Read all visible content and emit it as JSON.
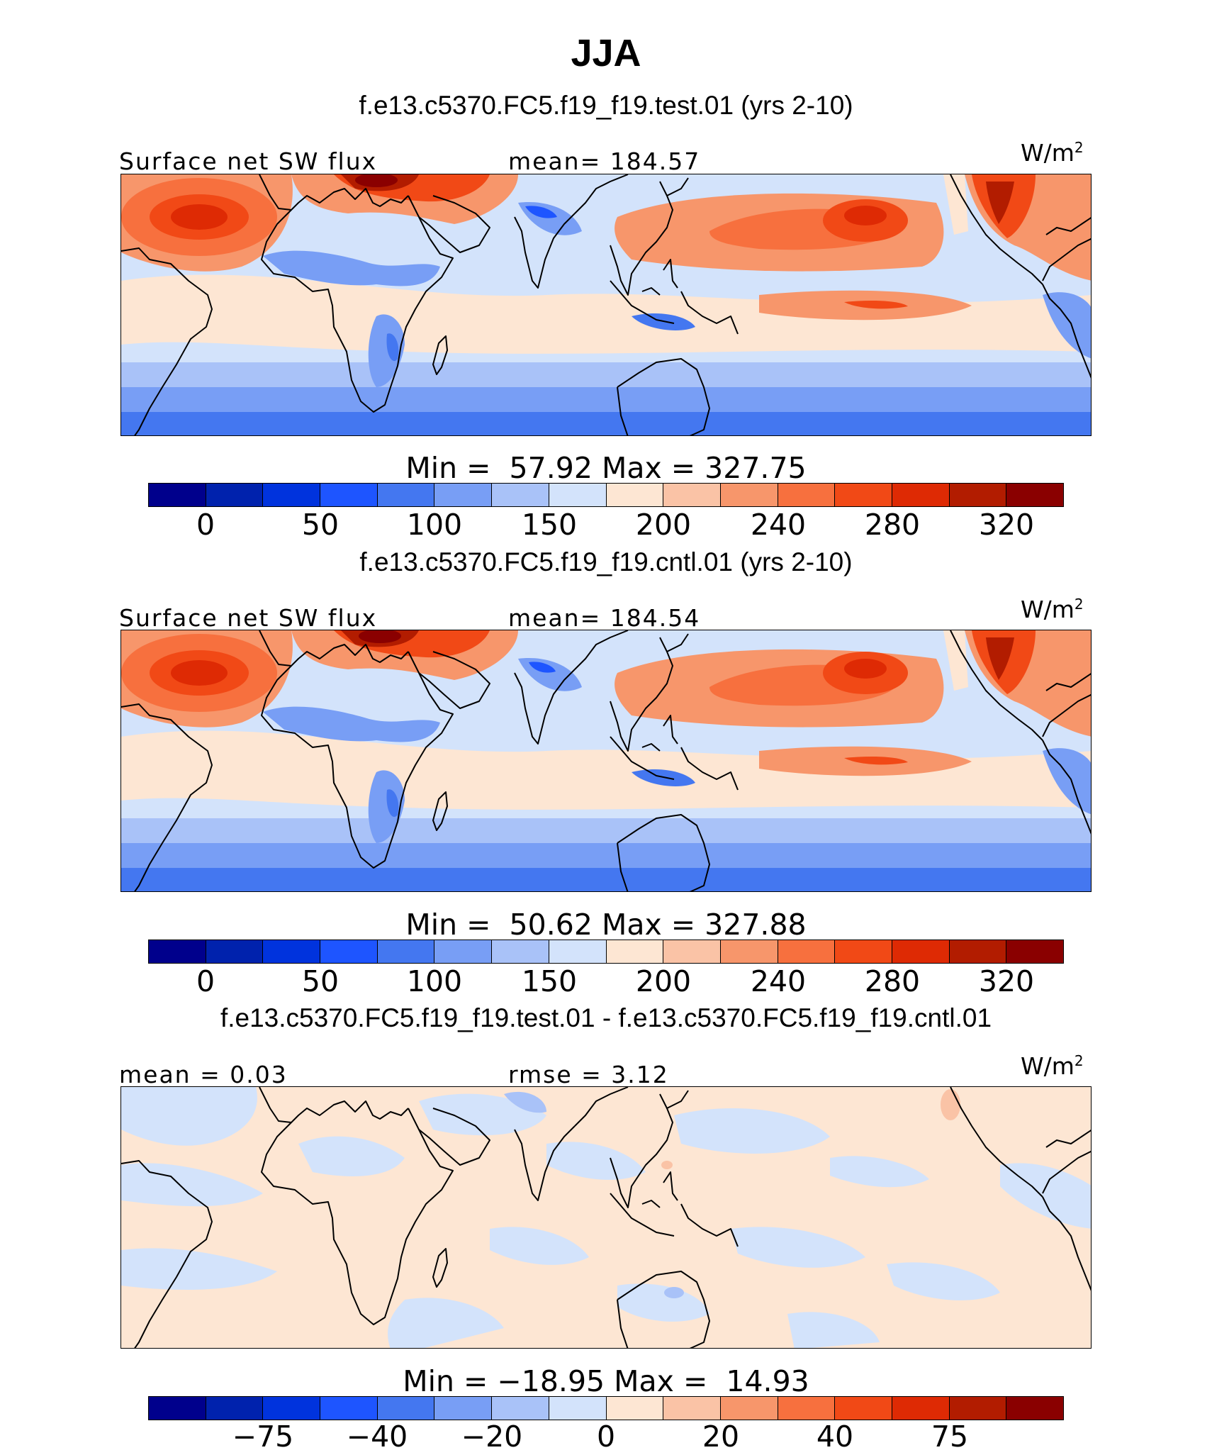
{
  "title": "JJA",
  "colors": [
    "#00008c",
    "#0022ad",
    "#0033dd",
    "#1e55ff",
    "#4477f0",
    "#789ef5",
    "#a9c2f8",
    "#d3e3fb",
    "#fde6d3",
    "#fac3a6",
    "#f7966b",
    "#f7703e",
    "#f14916",
    "#de2a04",
    "#b21c00",
    "#8a0000"
  ],
  "panels": [
    {
      "case": "f.e13.c5370.FC5.f19_f19.test.01 (yrs 2-10)",
      "left_label": "Surface net SW flux",
      "center_label": "mean= 184.57",
      "unit": "W/m",
      "unit_sup": "2",
      "minmax": "Min =  57.92 Max = 327.75",
      "ticks": [
        "0",
        "50",
        "100",
        "150",
        "200",
        "240",
        "280",
        "320"
      ]
    },
    {
      "case": "f.e13.c5370.FC5.f19_f19.cntl.01 (yrs 2-10)",
      "left_label": "Surface net SW flux",
      "center_label": "mean= 184.54",
      "unit": "W/m",
      "unit_sup": "2",
      "minmax": "Min =  50.62 Max = 327.88",
      "ticks": [
        "0",
        "50",
        "100",
        "150",
        "200",
        "240",
        "280",
        "320"
      ]
    },
    {
      "case": "f.e13.c5370.FC5.f19_f19.test.01 - f.e13.c5370.FC5.f19_f19.cntl.01",
      "left_label": "mean =   0.03",
      "center_label": "rmse =   3.12",
      "unit": "W/m",
      "unit_sup": "2",
      "minmax": "Min = −18.95 Max =  14.93",
      "ticks": [
        "−75",
        "−40",
        "−20",
        "0",
        "20",
        "40",
        "75"
      ]
    }
  ]
}
